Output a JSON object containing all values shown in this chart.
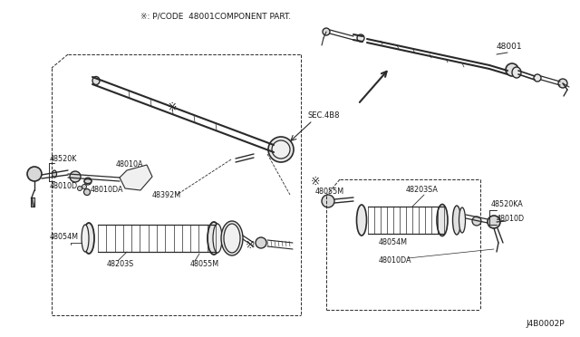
{
  "bg_color": "#ffffff",
  "line_color": "#2a2a2a",
  "text_color": "#1a1a1a",
  "header_note": "※: P/CODE  48001COMPONENT PART.",
  "diagram_id": "J4B0002P",
  "sec_label": "SEC.4B8",
  "ref_label": "48001",
  "star_char": "※",
  "font_size": 6.0,
  "title_font_size": 6.5
}
